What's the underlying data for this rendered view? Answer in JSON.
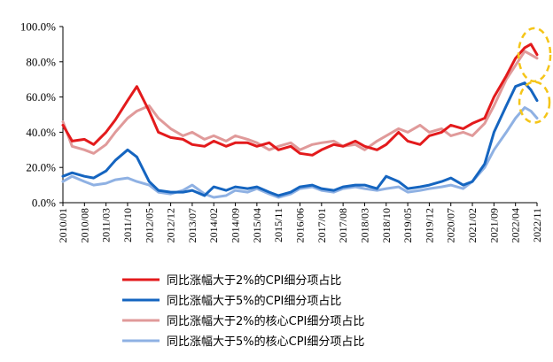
{
  "chart_data": {
    "type": "line",
    "title": "",
    "xlabel": "",
    "ylabel": "",
    "ylim": [
      0,
      100
    ],
    "y_ticks": [
      "0.0%",
      "20.0%",
      "40.0%",
      "60.0%",
      "80.0%",
      "100.0%"
    ],
    "x_ticks": [
      "2010/01",
      "2010/08",
      "2011/03",
      "2011/10",
      "2012/05",
      "2012/12",
      "2013/07",
      "2014/02",
      "2014/09",
      "2015/04",
      "2015/11",
      "2016/06",
      "2017/01",
      "2017/08",
      "2018/03",
      "2018/10",
      "2019/05",
      "2019/12",
      "2020/07",
      "2021/02",
      "2021/09",
      "2022/04",
      "2022/11"
    ],
    "grid": false,
    "legend_position": "bottom",
    "colors": {
      "series1": "#e31a1c",
      "series2": "#1565c0",
      "series3": "#e09a9a",
      "series4": "#8fb1e3",
      "highlight": "#f5c518"
    },
    "series": [
      {
        "name": "同比涨幅大于2%的CPI细分项占比",
        "x": [
          "2010/01",
          "2010/04",
          "2010/08",
          "2010/11",
          "2011/03",
          "2011/06",
          "2011/10",
          "2012/01",
          "2012/05",
          "2012/08",
          "2012/12",
          "2013/04",
          "2013/07",
          "2013/11",
          "2014/02",
          "2014/06",
          "2014/09",
          "2015/01",
          "2015/04",
          "2015/08",
          "2015/11",
          "2016/03",
          "2016/06",
          "2016/10",
          "2017/01",
          "2017/05",
          "2017/08",
          "2017/12",
          "2018/03",
          "2018/07",
          "2018/10",
          "2019/02",
          "2019/05",
          "2019/09",
          "2019/12",
          "2020/04",
          "2020/07",
          "2020/11",
          "2021/02",
          "2021/06",
          "2021/09",
          "2022/01",
          "2022/04",
          "2022/07",
          "2022/09",
          "2022/11"
        ],
        "values": [
          44,
          35,
          36,
          33,
          40,
          47,
          58,
          66,
          52,
          40,
          37,
          36,
          33,
          32,
          35,
          32,
          34,
          34,
          32,
          34,
          30,
          32,
          28,
          27,
          30,
          33,
          32,
          35,
          32,
          30,
          33,
          40,
          35,
          33,
          38,
          40,
          44,
          42,
          45,
          48,
          60,
          72,
          82,
          88,
          90,
          84
        ]
      },
      {
        "name": "同比涨幅大于5%的CPI细分项占比",
        "x": [
          "2010/01",
          "2010/04",
          "2010/08",
          "2010/11",
          "2011/03",
          "2011/06",
          "2011/10",
          "2012/01",
          "2012/05",
          "2012/08",
          "2012/12",
          "2013/04",
          "2013/07",
          "2013/11",
          "2014/02",
          "2014/06",
          "2014/09",
          "2015/01",
          "2015/04",
          "2015/08",
          "2015/11",
          "2016/03",
          "2016/06",
          "2016/10",
          "2017/01",
          "2017/05",
          "2017/08",
          "2017/12",
          "2018/03",
          "2018/07",
          "2018/10",
          "2019/02",
          "2019/05",
          "2019/09",
          "2019/12",
          "2020/04",
          "2020/07",
          "2020/11",
          "2021/02",
          "2021/06",
          "2021/09",
          "2022/01",
          "2022/04",
          "2022/07",
          "2022/09",
          "2022/11"
        ],
        "values": [
          15,
          17,
          15,
          14,
          18,
          24,
          30,
          26,
          12,
          7,
          6,
          6,
          7,
          4,
          9,
          7,
          9,
          8,
          9,
          6,
          4,
          6,
          9,
          10,
          8,
          7,
          9,
          10,
          10,
          8,
          15,
          12,
          8,
          9,
          10,
          12,
          14,
          10,
          12,
          22,
          40,
          55,
          66,
          68,
          64,
          58
        ]
      },
      {
        "name": "同比涨幅大于2%的核心CPI细分项占比",
        "x": [
          "2010/01",
          "2010/04",
          "2010/08",
          "2010/11",
          "2011/03",
          "2011/06",
          "2011/10",
          "2012/01",
          "2012/05",
          "2012/08",
          "2012/12",
          "2013/04",
          "2013/07",
          "2013/11",
          "2014/02",
          "2014/06",
          "2014/09",
          "2015/01",
          "2015/04",
          "2015/08",
          "2015/11",
          "2016/03",
          "2016/06",
          "2016/10",
          "2017/01",
          "2017/05",
          "2017/08",
          "2017/12",
          "2018/03",
          "2018/07",
          "2018/10",
          "2019/02",
          "2019/05",
          "2019/09",
          "2019/12",
          "2020/04",
          "2020/07",
          "2020/11",
          "2021/02",
          "2021/06",
          "2021/09",
          "2022/01",
          "2022/04",
          "2022/07",
          "2022/09",
          "2022/11"
        ],
        "values": [
          46,
          32,
          30,
          28,
          33,
          40,
          48,
          52,
          55,
          48,
          42,
          38,
          40,
          36,
          38,
          35,
          38,
          36,
          34,
          30,
          32,
          34,
          30,
          33,
          34,
          35,
          32,
          33,
          30,
          35,
          38,
          42,
          40,
          44,
          40,
          42,
          38,
          40,
          38,
          45,
          55,
          70,
          78,
          86,
          84,
          82
        ]
      },
      {
        "name": "同比涨幅大于5%的核心CPI细分项占比",
        "x": [
          "2010/01",
          "2010/04",
          "2010/08",
          "2010/11",
          "2011/03",
          "2011/06",
          "2011/10",
          "2012/01",
          "2012/05",
          "2012/08",
          "2012/12",
          "2013/04",
          "2013/07",
          "2013/11",
          "2014/02",
          "2014/06",
          "2014/09",
          "2015/01",
          "2015/04",
          "2015/08",
          "2015/11",
          "2016/03",
          "2016/06",
          "2016/10",
          "2017/01",
          "2017/05",
          "2017/08",
          "2017/12",
          "2018/03",
          "2018/07",
          "2018/10",
          "2019/02",
          "2019/05",
          "2019/09",
          "2019/12",
          "2020/04",
          "2020/07",
          "2020/11",
          "2021/02",
          "2021/06",
          "2021/09",
          "2022/01",
          "2022/04",
          "2022/07",
          "2022/09",
          "2022/11"
        ],
        "values": [
          12,
          15,
          12,
          10,
          11,
          13,
          14,
          12,
          10,
          6,
          5,
          7,
          10,
          5,
          3,
          4,
          7,
          6,
          8,
          5,
          3,
          5,
          8,
          9,
          7,
          6,
          8,
          9,
          8,
          7,
          8,
          9,
          6,
          7,
          8,
          9,
          10,
          8,
          12,
          20,
          30,
          40,
          48,
          54,
          52,
          48
        ]
      }
    ],
    "annotations": [
      {
        "type": "dashed-ellipse",
        "target_x": "2022/09",
        "target_y": 84
      },
      {
        "type": "dashed-ellipse",
        "target_x": "2022/09",
        "target_y": 57
      }
    ]
  }
}
